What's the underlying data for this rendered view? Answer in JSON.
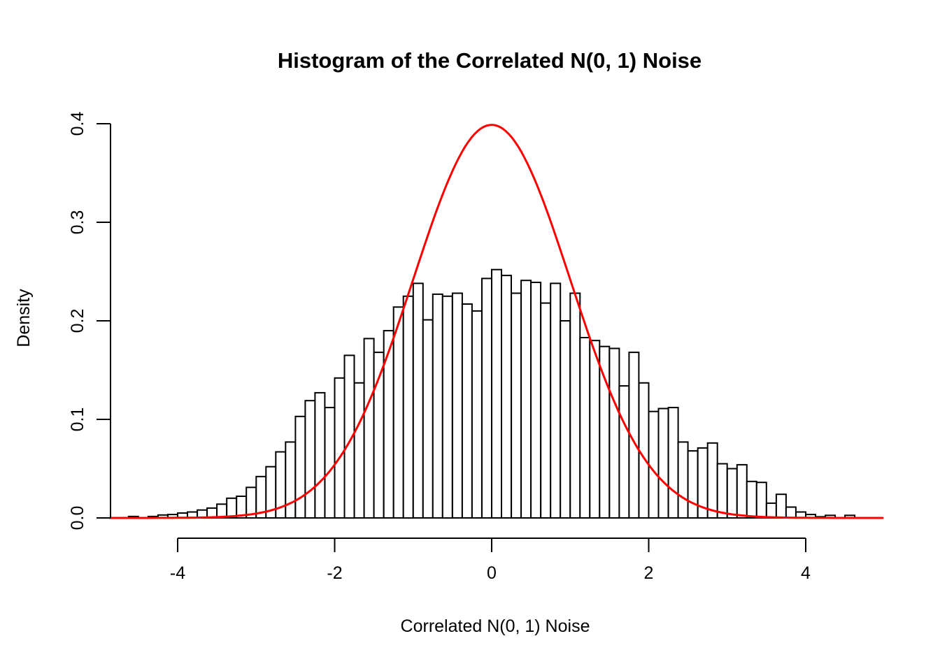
{
  "title": "Histogram of the Correlated N(0, 1) Noise",
  "x_axis_label": "Correlated N(0, 1) Noise",
  "y_axis_label": "Density",
  "colors": {
    "background": "#FFFFFF",
    "bar_fill": "#FFFFFF",
    "bar_stroke": "#000000",
    "axis": "#000000",
    "curve": "#FF0000"
  },
  "chart_data": {
    "type": "histogram",
    "title": "Histogram of the Correlated N(0, 1) Noise",
    "xlabel": "Correlated N(0, 1) Noise",
    "ylabel": "Density",
    "xlim": [
      -5,
      5
    ],
    "ylim": [
      0,
      0.4
    ],
    "grid": false,
    "legend": null,
    "x_ticks": [
      -4,
      -2,
      0,
      2,
      4
    ],
    "x_tick_labels": [
      "-4",
      "-2",
      "0",
      "2",
      "4"
    ],
    "y_ticks": [
      0.0,
      0.1,
      0.2,
      0.3,
      0.4
    ],
    "y_tick_labels": [
      "0.0",
      "0.1",
      "0.2",
      "0.3",
      "0.4"
    ],
    "bins": {
      "start": -4.75,
      "width": 0.125,
      "densities": [
        0,
        0.0015,
        0,
        0.0015,
        0.003,
        0.0035,
        0.005,
        0.006,
        0.008,
        0.01,
        0.014,
        0.02,
        0.022,
        0.031,
        0.042,
        0.052,
        0.067,
        0.077,
        0.103,
        0.119,
        0.127,
        0.112,
        0.142,
        0.165,
        0.137,
        0.182,
        0.168,
        0.19,
        0.214,
        0.225,
        0.238,
        0.201,
        0.227,
        0.225,
        0.228,
        0.217,
        0.21,
        0.243,
        0.252,
        0.246,
        0.228,
        0.241,
        0.239,
        0.218,
        0.238,
        0.2,
        0.228,
        0.183,
        0.18,
        0.174,
        0.172,
        0.134,
        0.168,
        0.137,
        0.108,
        0.111,
        0.112,
        0.077,
        0.068,
        0.071,
        0.076,
        0.055,
        0.05,
        0.054,
        0.037,
        0.036,
        0.015,
        0.024,
        0.011,
        0.006,
        0.0035,
        0.0012,
        0.0026,
        0,
        0.0026
      ]
    },
    "overlay_curve": {
      "type": "normal-density",
      "mean": 0,
      "sd": 1,
      "peak_density": 0.3989,
      "x_range": [
        -4.86,
        4.99
      ],
      "color": "#FF0000"
    }
  }
}
